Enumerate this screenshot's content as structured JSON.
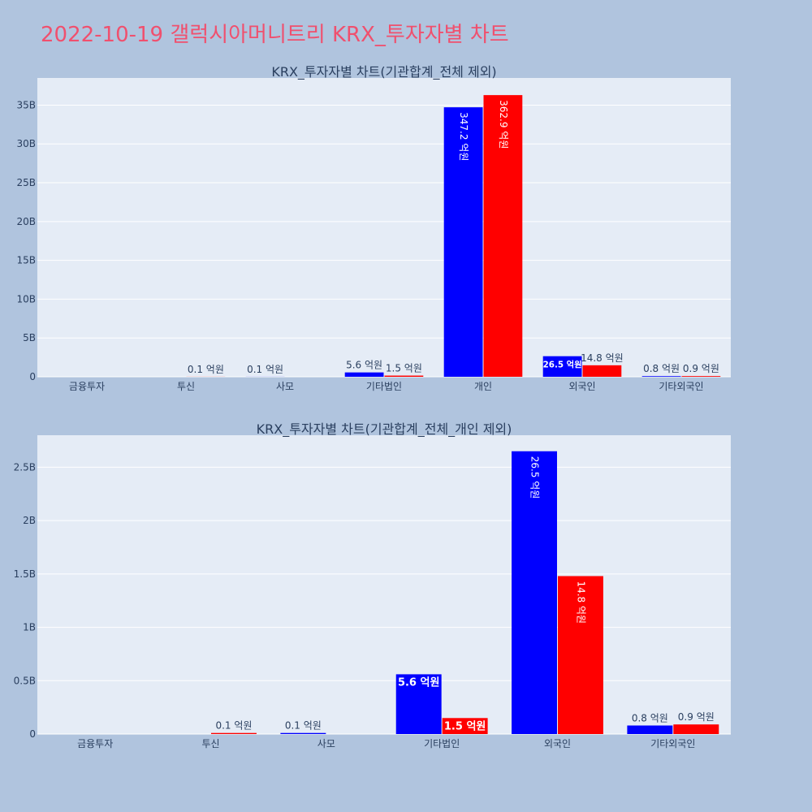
{
  "page": {
    "title": "2022-10-19 갤럭시아머니트리 KRX_투자자별 차트"
  },
  "colors": {
    "background": "#b0c4de",
    "plot_bg": "#e5ecf6",
    "grid": "#ffffff",
    "title": "#f0506e",
    "series_blue": "#0000ff",
    "series_red": "#ff0000"
  },
  "chart_data": [
    {
      "type": "bar",
      "title": "KRX_투자자별 차트(기관합계_전체 제외)",
      "categories": [
        "금융투자",
        "투신",
        "사모",
        "기타법인",
        "개인",
        "외국인",
        "기타외국인"
      ],
      "series": [
        {
          "color": "#0000ff",
          "values": [
            0,
            0,
            10000000,
            560000000,
            34720000000,
            2650000000,
            80000000
          ],
          "labels": [
            "",
            "",
            "0.1 억원",
            "5.6 억원",
            "347.2 억원",
            "26.5 억원",
            "0.8 억원"
          ]
        },
        {
          "color": "#ff0000",
          "values": [
            0,
            10000000,
            0,
            150000000,
            36290000000,
            1480000000,
            90000000
          ],
          "labels": [
            "",
            "0.1 억원",
            "",
            "1.5 억원",
            "362.9 억원",
            "14.8 억원",
            "0.9 억원"
          ]
        }
      ],
      "ylim": [
        0,
        38500000000
      ],
      "yticks": [
        0,
        5000000000,
        10000000000,
        15000000000,
        20000000000,
        25000000000,
        30000000000,
        35000000000
      ],
      "ytick_labels": [
        "0",
        "5B",
        "10B",
        "15B",
        "20B",
        "25B",
        "30B",
        "35B"
      ],
      "grid": true,
      "legend": "none"
    },
    {
      "type": "bar",
      "title": "KRX_투자자별 차트(기관합계_전체_개인 제외)",
      "categories": [
        "금융투자",
        "투신",
        "사모",
        "기타법인",
        "외국인",
        "기타외국인"
      ],
      "series": [
        {
          "color": "#0000ff",
          "values": [
            0,
            0,
            10000000,
            560000000,
            2650000000,
            80000000
          ],
          "labels": [
            "",
            "",
            "0.1 억원",
            "5.6 억원",
            "26.5 억원",
            "0.8 억원"
          ]
        },
        {
          "color": "#ff0000",
          "values": [
            0,
            10000000,
            0,
            150000000,
            1480000000,
            90000000
          ],
          "labels": [
            "",
            "0.1 억원",
            "",
            "1.5 억원",
            "14.8 억원",
            "0.9 억원"
          ]
        }
      ],
      "ylim": [
        0,
        2800000000
      ],
      "yticks": [
        0,
        500000000,
        1000000000,
        1500000000,
        2000000000,
        2500000000
      ],
      "ytick_labels": [
        "0",
        "0.5B",
        "1B",
        "1.5B",
        "2B",
        "2.5B"
      ],
      "grid": true,
      "legend": "none"
    }
  ]
}
